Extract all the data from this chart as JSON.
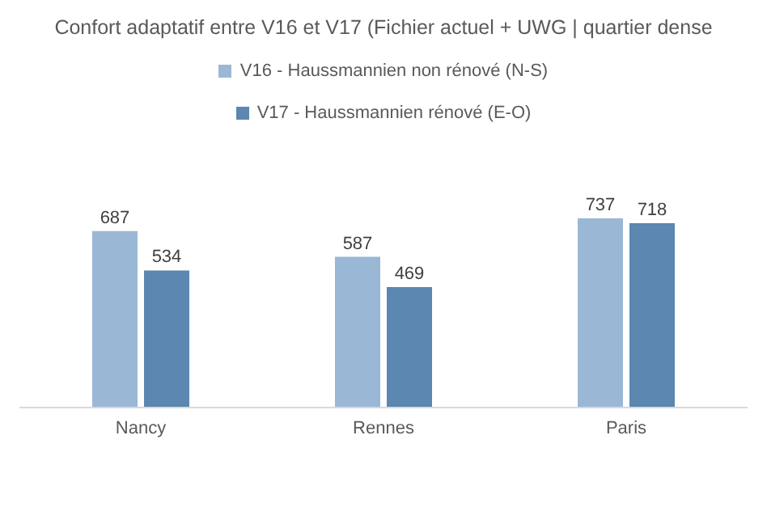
{
  "chart_data": {
    "type": "bar",
    "title": "Confort adaptatif entre V16 et V17 (Fichier actuel + UWG | quartier dense",
    "categories": [
      "Nancy",
      "Rennes",
      "Paris"
    ],
    "series": [
      {
        "name": "V16 - Haussmannien non rénové (N-S)",
        "color": "#9bb7d6",
        "values": [
          687,
          587,
          737
        ]
      },
      {
        "name": "V17 - Haussmannien rénové (E-O)",
        "color": "#5b87b0",
        "values": [
          534,
          469,
          718
        ]
      }
    ],
    "tick_labels": "x",
    "legend": "top",
    "data_labels": true
  }
}
